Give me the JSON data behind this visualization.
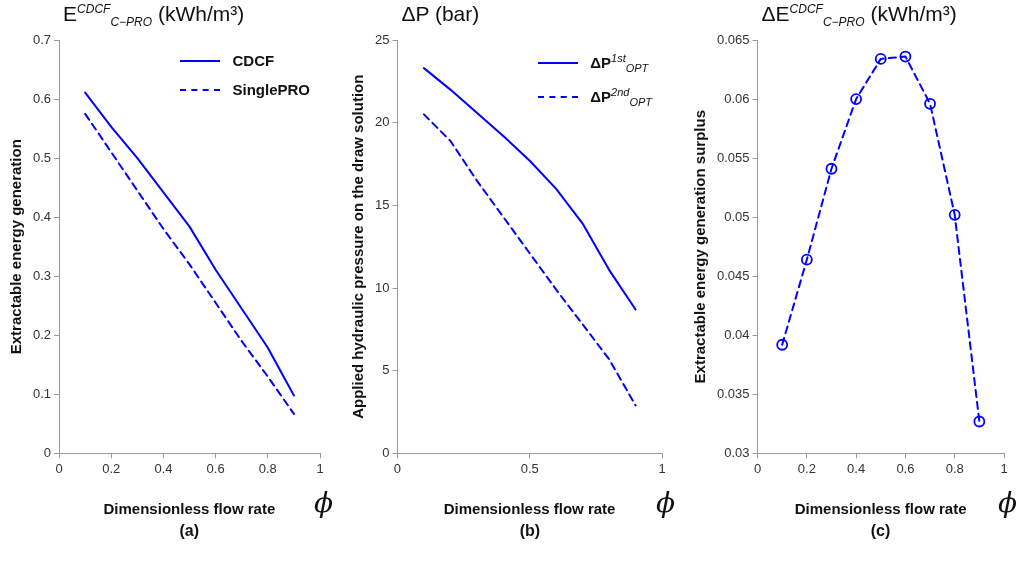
{
  "chart_data": [
    {
      "type": "line",
      "title": "E$^{CDCF}$$_{C−PRO}$ (kWh/m³)",
      "xlabel": "Dimensionless flow rate",
      "ylabel": "Extractable energy generation",
      "x": [
        0.1,
        0.2,
        0.3,
        0.4,
        0.5,
        0.6,
        0.7,
        0.8,
        0.9
      ],
      "series": [
        {
          "name": "CDCF",
          "color": "#0000ff",
          "line_style": "solid",
          "values": [
            0.611,
            0.553,
            0.5,
            0.442,
            0.384,
            0.311,
            0.245,
            0.179,
            0.098
          ]
        },
        {
          "name": "SinglePRO",
          "color": "#0000ff",
          "line_style": "dashed",
          "values": [
            0.575,
            0.51,
            0.445,
            0.38,
            0.32,
            0.255,
            0.19,
            0.13,
            0.067
          ]
        }
      ],
      "xlim": [
        0,
        1
      ],
      "xticks": [
        0,
        0.2,
        0.4,
        0.6,
        0.8,
        1
      ],
      "ylim": [
        0,
        0.7
      ],
      "yticks": [
        0,
        0.1,
        0.2,
        0.3,
        0.4,
        0.5,
        0.6,
        0.7
      ],
      "grid": false,
      "legend": "top right",
      "annotations": [
        "ϕ",
        "(a)"
      ]
    },
    {
      "type": "line",
      "title": "ΔP (bar)",
      "xlabel": "Dimensionless flow rate",
      "ylabel": "Applied hydraulic pressure on the draw solution",
      "x": [
        0.1,
        0.2,
        0.3,
        0.4,
        0.5,
        0.6,
        0.7,
        0.8,
        0.9
      ],
      "series": [
        {
          "name": "ΔP$^{1st}$$_{OPT}$",
          "color": "#0000ff",
          "line_style": "solid",
          "values": [
            23.3,
            22.0,
            20.6,
            19.2,
            17.7,
            16.0,
            13.9,
            11.1,
            8.7
          ]
        },
        {
          "name": "ΔP$^{2nd}$$_{OPT}$",
          "color": "#0000ff",
          "line_style": "dashed",
          "values": [
            20.5,
            18.9,
            16.5,
            14.3,
            12.1,
            9.9,
            7.8,
            5.7,
            2.9
          ]
        }
      ],
      "xlim": [
        0,
        1
      ],
      "xticks": [
        0,
        0.5,
        1
      ],
      "ylim": [
        0,
        25
      ],
      "yticks": [
        0,
        5,
        10,
        15,
        20,
        25
      ],
      "grid": false,
      "legend": "top right",
      "annotations": [
        "ϕ",
        "(b)"
      ]
    },
    {
      "type": "line",
      "title": "ΔE$^{CDCF}$$_{C−PRO}$ (kWh/m³)",
      "xlabel": "Dimensionless flow rate",
      "ylabel": "Extractable energy generation surplus",
      "x": [
        0.1,
        0.2,
        0.3,
        0.4,
        0.5,
        0.6,
        0.7,
        0.8,
        0.9
      ],
      "series": [
        {
          "color": "#0000ff",
          "line_style": "dashed",
          "values": [
            0.0392,
            0.0464,
            0.0541,
            0.06,
            0.0634,
            0.0636,
            0.0596,
            0.0502,
            0.0327
          ]
        }
      ],
      "marker": "circle",
      "xlim": [
        0,
        1
      ],
      "xticks": [
        0,
        0.2,
        0.4,
        0.6,
        0.8,
        1
      ],
      "ylim": [
        0.03,
        0.065
      ],
      "yticks": [
        0.03,
        0.035,
        0.04,
        0.045,
        0.05,
        0.055,
        0.06,
        0.065
      ],
      "grid": false,
      "annotations": [
        "ϕ",
        "(c)"
      ]
    }
  ]
}
